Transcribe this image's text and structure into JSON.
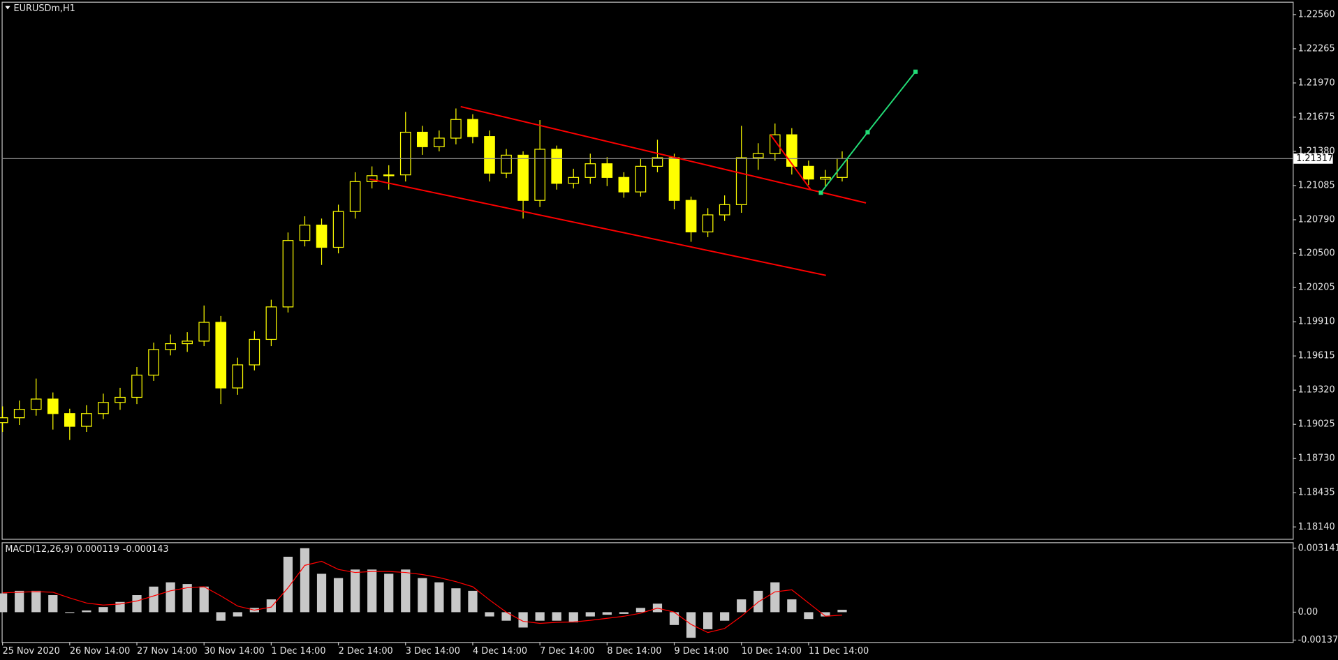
{
  "chart_data": [
    {
      "type": "candlestick",
      "title": "EURUSDm,H1",
      "color": "#ffff00",
      "x": [
        0,
        6,
        12,
        18,
        24,
        30,
        36,
        42,
        48,
        54,
        60,
        66,
        72,
        78,
        84,
        90,
        96,
        102,
        108,
        114,
        120,
        126,
        132,
        138,
        144,
        150,
        156,
        162,
        168,
        174,
        180,
        186,
        192,
        198,
        204,
        210,
        216,
        222,
        228,
        234,
        240,
        246,
        252,
        258,
        264,
        270,
        276,
        282,
        288,
        294,
        300
      ],
      "open": [
        1.1904,
        1.19082,
        1.19155,
        1.19243,
        1.19118,
        1.19008,
        1.19118,
        1.19214,
        1.19258,
        1.19449,
        1.1967,
        1.19721,
        1.19743,
        1.19905,
        1.19339,
        1.19538,
        1.19758,
        1.20038,
        1.20611,
        1.20744,
        1.20552,
        1.20861,
        1.21119,
        1.2117,
        1.21177,
        1.21545,
        1.2142,
        1.21494,
        1.21655,
        1.21508,
        1.21192,
        1.21347,
        1.20957,
        1.21398,
        1.21104,
        1.21155,
        1.21273,
        1.21155,
        1.2103,
        1.21251,
        1.21325,
        1.20957,
        1.20685,
        1.20832,
        1.2092,
        1.21325,
        1.21361,
        1.21523,
        1.21251,
        1.21141,
        1.21155
      ],
      "high": [
        1.1918,
        1.1923,
        1.1942,
        1.193,
        1.1916,
        1.1919,
        1.1929,
        1.1934,
        1.1952,
        1.1973,
        1.198,
        1.1982,
        1.2005,
        1.1996,
        1.196,
        1.1983,
        1.201,
        1.2068,
        1.2082,
        1.208,
        1.2092,
        1.212,
        1.2125,
        1.2126,
        1.2172,
        1.216,
        1.2156,
        1.2175,
        1.217,
        1.2156,
        1.214,
        1.2138,
        1.2165,
        1.2143,
        1.2123,
        1.2136,
        1.2133,
        1.212,
        1.2132,
        1.2148,
        1.2136,
        1.2099,
        1.2089,
        1.21,
        1.216,
        1.2145,
        1.2162,
        1.2158,
        1.213,
        1.2122,
        1.2138
      ],
      "low": [
        1.1896,
        1.1902,
        1.191,
        1.1898,
        1.1889,
        1.1896,
        1.1907,
        1.1915,
        1.192,
        1.194,
        1.1962,
        1.1965,
        1.197,
        1.192,
        1.1928,
        1.1949,
        1.197,
        1.1999,
        1.2056,
        1.204,
        1.205,
        1.208,
        1.2106,
        1.2105,
        1.2112,
        1.2135,
        1.2138,
        1.2144,
        1.2145,
        1.2112,
        1.2115,
        1.208,
        1.209,
        1.2105,
        1.2106,
        1.211,
        1.2108,
        1.2098,
        1.2099,
        1.212,
        1.2088,
        1.206,
        1.2064,
        1.2078,
        1.2085,
        1.2122,
        1.213,
        1.2118,
        1.2109,
        1.2107,
        1.2112
      ],
      "close": [
        1.19082,
        1.19155,
        1.19243,
        1.19118,
        1.19008,
        1.19118,
        1.19214,
        1.19258,
        1.19449,
        1.1967,
        1.19721,
        1.19743,
        1.19905,
        1.19339,
        1.19538,
        1.19758,
        1.20038,
        1.20611,
        1.20744,
        1.20552,
        1.20861,
        1.21119,
        1.2117,
        1.21177,
        1.21545,
        1.2142,
        1.21494,
        1.21655,
        1.21508,
        1.21192,
        1.21347,
        1.20957,
        1.21398,
        1.21104,
        1.21155,
        1.21273,
        1.21155,
        1.2103,
        1.21251,
        1.21325,
        1.20957,
        1.20685,
        1.20832,
        1.2092,
        1.21325,
        1.21361,
        1.21523,
        1.21251,
        1.21141,
        1.21155,
        1.21317
      ],
      "current_price": 1.21317,
      "xlim": [
        -0.3,
        461
      ],
      "xticks": [
        {
          "value": 0,
          "label": "25 Nov 2020"
        },
        {
          "value": 24,
          "label": "26 Nov 14:00"
        },
        {
          "value": 48,
          "label": "27 Nov 14:00"
        },
        {
          "value": 72,
          "label": "30 Nov 14:00"
        },
        {
          "value": 96,
          "label": "1 Dec 14:00"
        },
        {
          "value": 120,
          "label": "2 Dec 14:00"
        },
        {
          "value": 144,
          "label": "3 Dec 14:00"
        },
        {
          "value": 168,
          "label": "4 Dec 14:00"
        },
        {
          "value": 192,
          "label": "7 Dec 14:00"
        },
        {
          "value": 216,
          "label": "8 Dec 14:00"
        },
        {
          "value": 240,
          "label": "9 Dec 14:00"
        },
        {
          "value": 264,
          "label": "10 Dec 14:00"
        },
        {
          "value": 288,
          "label": "11 Dec 14:00"
        }
      ],
      "ylim": [
        1.18037,
        1.22685
      ],
      "yticks": [
        {
          "value": 1.2256,
          "label": "1.22560"
        },
        1.22265,
        {
          "value": 1.2197,
          "label": "1.21970"
        },
        1.21675,
        {
          "value": 1.2138,
          "label": "1.21380"
        },
        1.21085,
        {
          "value": 1.2079,
          "label": "1.20790"
        },
        {
          "value": 1.205,
          "label": "1.20500"
        },
        1.20205,
        {
          "value": 1.1991,
          "label": "1.19910"
        },
        1.19615,
        {
          "value": 1.1932,
          "label": "1.19320"
        },
        1.19025,
        {
          "value": 1.1873,
          "label": "1.18730"
        },
        1.18435,
        {
          "value": 1.1814,
          "label": "1.18140"
        }
      ],
      "trendlines": [
        {
          "color": "#ff0000",
          "x": [
            163.7,
            308.5
          ],
          "y": [
            1.21766,
            1.20935
          ]
        },
        {
          "color": "#ff0000",
          "x": [
            131.1,
            294.2
          ],
          "y": [
            1.21141,
            1.2031
          ]
        },
        {
          "color": "#ff0000",
          "x": [
            274.4,
            288.7
          ],
          "y": [
            1.21523,
            1.21052
          ]
        },
        {
          "color": "#22dd77",
          "x": [
            292.4,
            309.1,
            326.2
          ],
          "y": [
            1.21023,
            1.21545,
            1.22067
          ]
        }
      ]
    },
    {
      "type": "macd",
      "indicator": "MACD(12,26,9)",
      "x": [
        0,
        6,
        12,
        18,
        24,
        30,
        36,
        42,
        48,
        54,
        60,
        66,
        72,
        78,
        84,
        90,
        96,
        102,
        108,
        114,
        120,
        126,
        132,
        138,
        144,
        150,
        156,
        162,
        168,
        174,
        180,
        186,
        192,
        198,
        204,
        210,
        216,
        222,
        228,
        234,
        240,
        246,
        252,
        258,
        264,
        270,
        276,
        282,
        288,
        294,
        300
      ],
      "histogram": {
        "color": "#c8c8c8",
        "values": [
          0.000922,
          0.001048,
          0.001048,
          0.000838,
          -4.2e-05,
          8.4e-05,
          0.000251,
          0.000503,
          0.000838,
          0.001257,
          0.001467,
          0.001383,
          0.001257,
          -0.000419,
          -0.00021,
          0.00021,
          0.000629,
          0.002724,
          0.003143,
          0.001886,
          0.001676,
          0.002095,
          0.002095,
          0.001886,
          0.002095,
          0.001676,
          0.001467,
          0.001173,
          0.001048,
          -0.00021,
          -0.000419,
          -0.000754,
          -0.000419,
          -0.000419,
          -0.000503,
          -0.00021,
          -0.000126,
          -8.4e-05,
          0.00021,
          0.000419,
          -0.000629,
          -0.001257,
          -0.000838,
          -0.000419,
          0.000629,
          0.001048,
          0.001467,
          0.000629,
          -0.000335,
          -0.00021,
          0.000119
        ]
      },
      "signal": {
        "color": "#ff0000",
        "values": [
          0.00095,
          0.00098,
          0.00101,
          0.00098,
          0.0007,
          0.00045,
          0.00035,
          0.0004,
          0.00055,
          0.0008,
          0.00105,
          0.0012,
          0.00125,
          0.0008,
          0.0003,
          0.0001,
          0.00025,
          0.0012,
          0.0023,
          0.0025,
          0.0021,
          0.00195,
          0.002,
          0.002,
          0.00195,
          0.00185,
          0.0017,
          0.0015,
          0.00125,
          0.0006,
          0,
          -0.00045,
          -0.00055,
          -0.0005,
          -0.00048,
          -0.0004,
          -0.0003,
          -0.0002,
          -5e-05,
          0.0002,
          0,
          -0.0006,
          -0.001,
          -0.0008,
          -0.0002,
          0.0005,
          0.001,
          0.0011,
          0.00045,
          -0.0002,
          -0.000143
        ]
      },
      "xlim": [
        -0.3,
        461
      ],
      "ylim": [
        -0.001466,
        0.003434
      ],
      "yticks": [
        0.003141,
        {
          "value": 0,
          "label": "0.00"
        },
        -0.001371
      ]
    }
  ]
}
